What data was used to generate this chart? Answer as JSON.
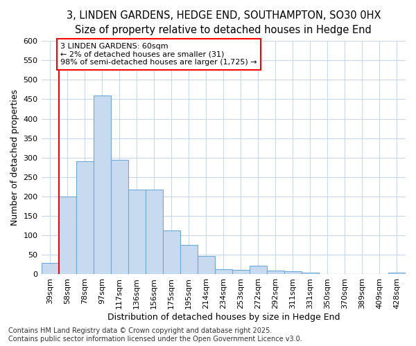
{
  "title_line1": "3, LINDEN GARDENS, HEDGE END, SOUTHAMPTON, SO30 0HX",
  "title_line2": "Size of property relative to detached houses in Hedge End",
  "xlabel": "Distribution of detached houses by size in Hedge End",
  "ylabel": "Number of detached properties",
  "categories": [
    "39sqm",
    "58sqm",
    "78sqm",
    "97sqm",
    "117sqm",
    "136sqm",
    "156sqm",
    "175sqm",
    "195sqm",
    "214sqm",
    "234sqm",
    "253sqm",
    "272sqm",
    "292sqm",
    "311sqm",
    "331sqm",
    "350sqm",
    "370sqm",
    "389sqm",
    "409sqm",
    "428sqm"
  ],
  "values": [
    30,
    200,
    290,
    460,
    295,
    217,
    217,
    112,
    75,
    47,
    14,
    12,
    22,
    10,
    8,
    5,
    0,
    0,
    0,
    0,
    5
  ],
  "bar_color": "#c8daf0",
  "bar_edge_color": "#6baad8",
  "vline_x_index": 1,
  "vline_color": "red",
  "annotation_box_text": "3 LINDEN GARDENS: 60sqm\n← 2% of detached houses are smaller (31)\n98% of semi-detached houses are larger (1,725) →",
  "annotation_box_color": "white",
  "annotation_box_edge_color": "red",
  "ylim": [
    0,
    600
  ],
  "yticks": [
    0,
    50,
    100,
    150,
    200,
    250,
    300,
    350,
    400,
    450,
    500,
    550,
    600
  ],
  "plot_bg_color": "#ffffff",
  "fig_bg_color": "#ffffff",
  "grid_color": "#c8d8ee",
  "footer": "Contains HM Land Registry data © Crown copyright and database right 2025.\nContains public sector information licensed under the Open Government Licence v3.0.",
  "title_fontsize": 10.5,
  "subtitle_fontsize": 9.5,
  "axis_label_fontsize": 9,
  "tick_fontsize": 8,
  "annotation_fontsize": 8,
  "footer_fontsize": 7
}
